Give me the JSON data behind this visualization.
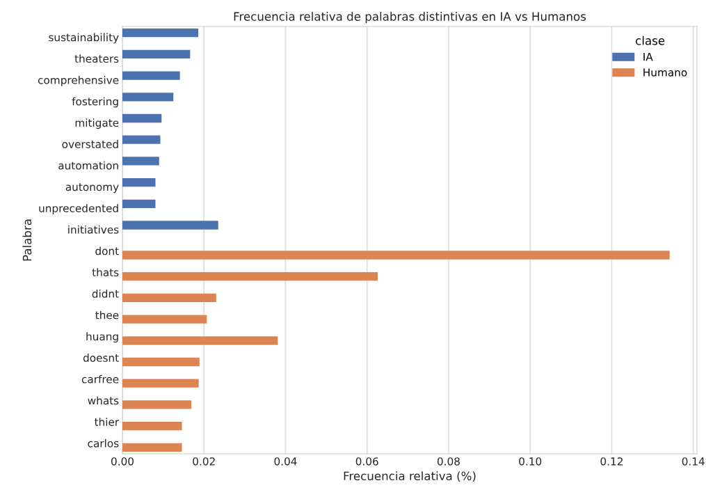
{
  "chart_data": {
    "type": "bar",
    "orientation": "horizontal",
    "title": "Frecuencia relativa de palabras distintivas en IA vs Humanos",
    "xlabel": "Frecuencia relativa (%)",
    "ylabel": "Palabra",
    "legend_title": "clase",
    "legend": "top right",
    "grid": "x",
    "categories": [
      "sustainability",
      "theaters",
      "comprehensive",
      "fostering",
      "mitigate",
      "overstated",
      "automation",
      "autonomy",
      "unprecedented",
      "initiatives",
      "dont",
      "thats",
      "didnt",
      "thee",
      "huang",
      "doesnt",
      "carfree",
      "whats",
      "thier",
      "carlos"
    ],
    "series": [
      {
        "name": "IA",
        "color": "#4c72b0",
        "values": [
          0.0186,
          0.0166,
          0.0141,
          0.0125,
          0.0096,
          0.0093,
          0.009,
          0.0081,
          0.0081,
          0.0235,
          null,
          null,
          null,
          null,
          null,
          null,
          null,
          null,
          null,
          null
        ]
      },
      {
        "name": "Humano",
        "color": "#dd8452",
        "values": [
          null,
          null,
          null,
          null,
          null,
          null,
          null,
          null,
          null,
          null,
          0.1342,
          0.0626,
          0.023,
          0.0207,
          0.0381,
          0.0189,
          0.0187,
          0.0169,
          0.0146,
          0.0146
        ]
      }
    ],
    "xlim": [
      0,
      0.1409
    ],
    "xticks": [
      {
        "value": 0,
        "label": "0.00"
      },
      {
        "value": 0.02,
        "label": "0.02"
      },
      {
        "value": 0.04,
        "label": "0.04"
      },
      {
        "value": 0.06,
        "label": "0.06"
      },
      {
        "value": 0.08,
        "label": "0.08"
      },
      {
        "value": 0.1,
        "label": "0.10"
      },
      {
        "value": 0.12,
        "label": "0.12"
      },
      {
        "value": 0.14,
        "label": "0.14"
      }
    ]
  }
}
